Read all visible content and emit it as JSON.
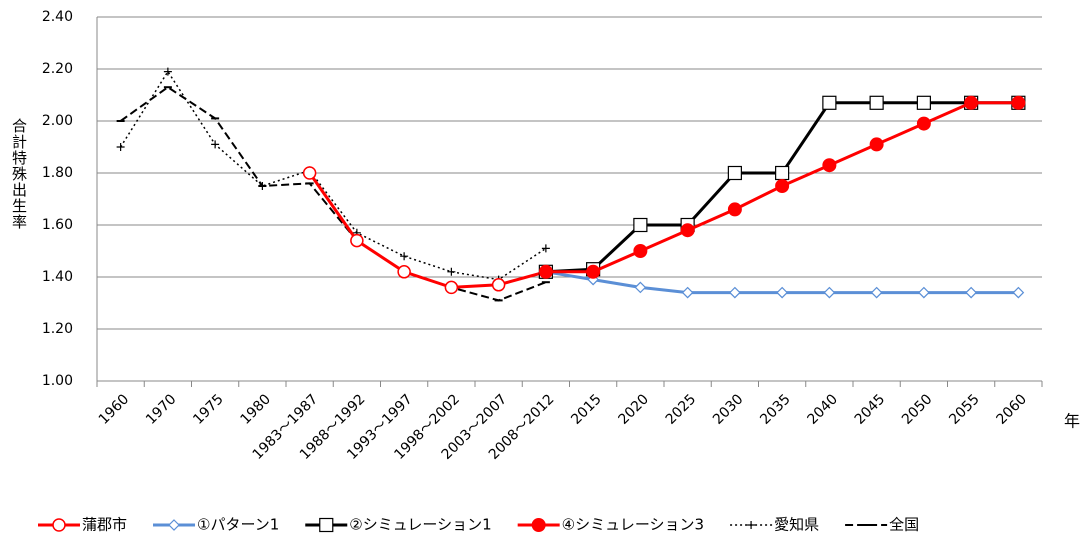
{
  "chart_data": {
    "type": "line",
    "y_label": "合計特殊出生率",
    "x_label": "年",
    "categories": [
      "1960",
      "1970",
      "1975",
      "1980",
      "1983～1987",
      "1988～1992",
      "1993～1997",
      "1998～2002",
      "2003～2007",
      "2008～2012",
      "2015",
      "2020",
      "2025",
      "2030",
      "2035",
      "2040",
      "2045",
      "2050",
      "2055",
      "2060"
    ],
    "ylim": [
      1.0,
      2.4
    ],
    "yticks": [
      {
        "value": 1.0,
        "label": "1.00"
      },
      {
        "value": 1.2,
        "label": "1.20"
      },
      {
        "value": 1.4,
        "label": "1.40"
      },
      {
        "value": 1.6,
        "label": "1.60"
      },
      {
        "value": 1.8,
        "label": "1.80"
      },
      {
        "value": 2.0,
        "label": "2.00"
      },
      {
        "value": 2.2,
        "label": "2.20"
      },
      {
        "value": 2.4,
        "label": "2.40"
      }
    ],
    "grid": true,
    "series": [
      {
        "name": "蒲郡市",
        "color": "#ff0000",
        "marker": "circle-open",
        "line": "solid",
        "values": [
          null,
          null,
          null,
          null,
          1.8,
          1.54,
          1.42,
          1.36,
          1.37,
          1.42,
          null,
          null,
          null,
          null,
          null,
          null,
          null,
          null,
          null,
          null
        ]
      },
      {
        "name": "①パターン1",
        "color": "#5b8fd6",
        "marker": "diamond-open",
        "line": "solid",
        "values": [
          null,
          null,
          null,
          null,
          null,
          null,
          null,
          null,
          null,
          1.42,
          1.39,
          1.36,
          1.34,
          1.34,
          1.34,
          1.34,
          1.34,
          1.34,
          1.34,
          1.34
        ]
      },
      {
        "name": "②シミュレーション1",
        "color": "#000000",
        "marker": "square-open",
        "line": "solid",
        "values": [
          null,
          null,
          null,
          null,
          null,
          null,
          null,
          null,
          null,
          1.42,
          1.43,
          1.6,
          1.6,
          1.8,
          1.8,
          2.07,
          2.07,
          2.07,
          2.07,
          2.07
        ]
      },
      {
        "name": "④シミュレーション3",
        "color": "#ff0000",
        "marker": "circle",
        "line": "solid",
        "values": [
          null,
          null,
          null,
          null,
          null,
          null,
          null,
          null,
          null,
          1.42,
          1.42,
          1.5,
          1.58,
          1.66,
          1.75,
          1.83,
          1.91,
          1.99,
          2.07,
          2.07
        ]
      },
      {
        "name": "愛知県",
        "color": "#000000",
        "marker": "plus",
        "line": "dotted",
        "values": [
          1.9,
          2.19,
          1.91,
          1.75,
          1.81,
          1.57,
          1.48,
          1.42,
          1.39,
          1.51,
          null,
          null,
          null,
          null,
          null,
          null,
          null,
          null,
          null,
          null
        ]
      },
      {
        "name": "全国",
        "color": "#000000",
        "marker": "dash",
        "line": "dashed",
        "values": [
          2.0,
          2.13,
          2.01,
          1.75,
          1.76,
          1.54,
          1.42,
          1.36,
          1.31,
          1.38,
          null,
          null,
          null,
          null,
          null,
          null,
          null,
          null,
          null,
          null
        ]
      }
    ]
  }
}
